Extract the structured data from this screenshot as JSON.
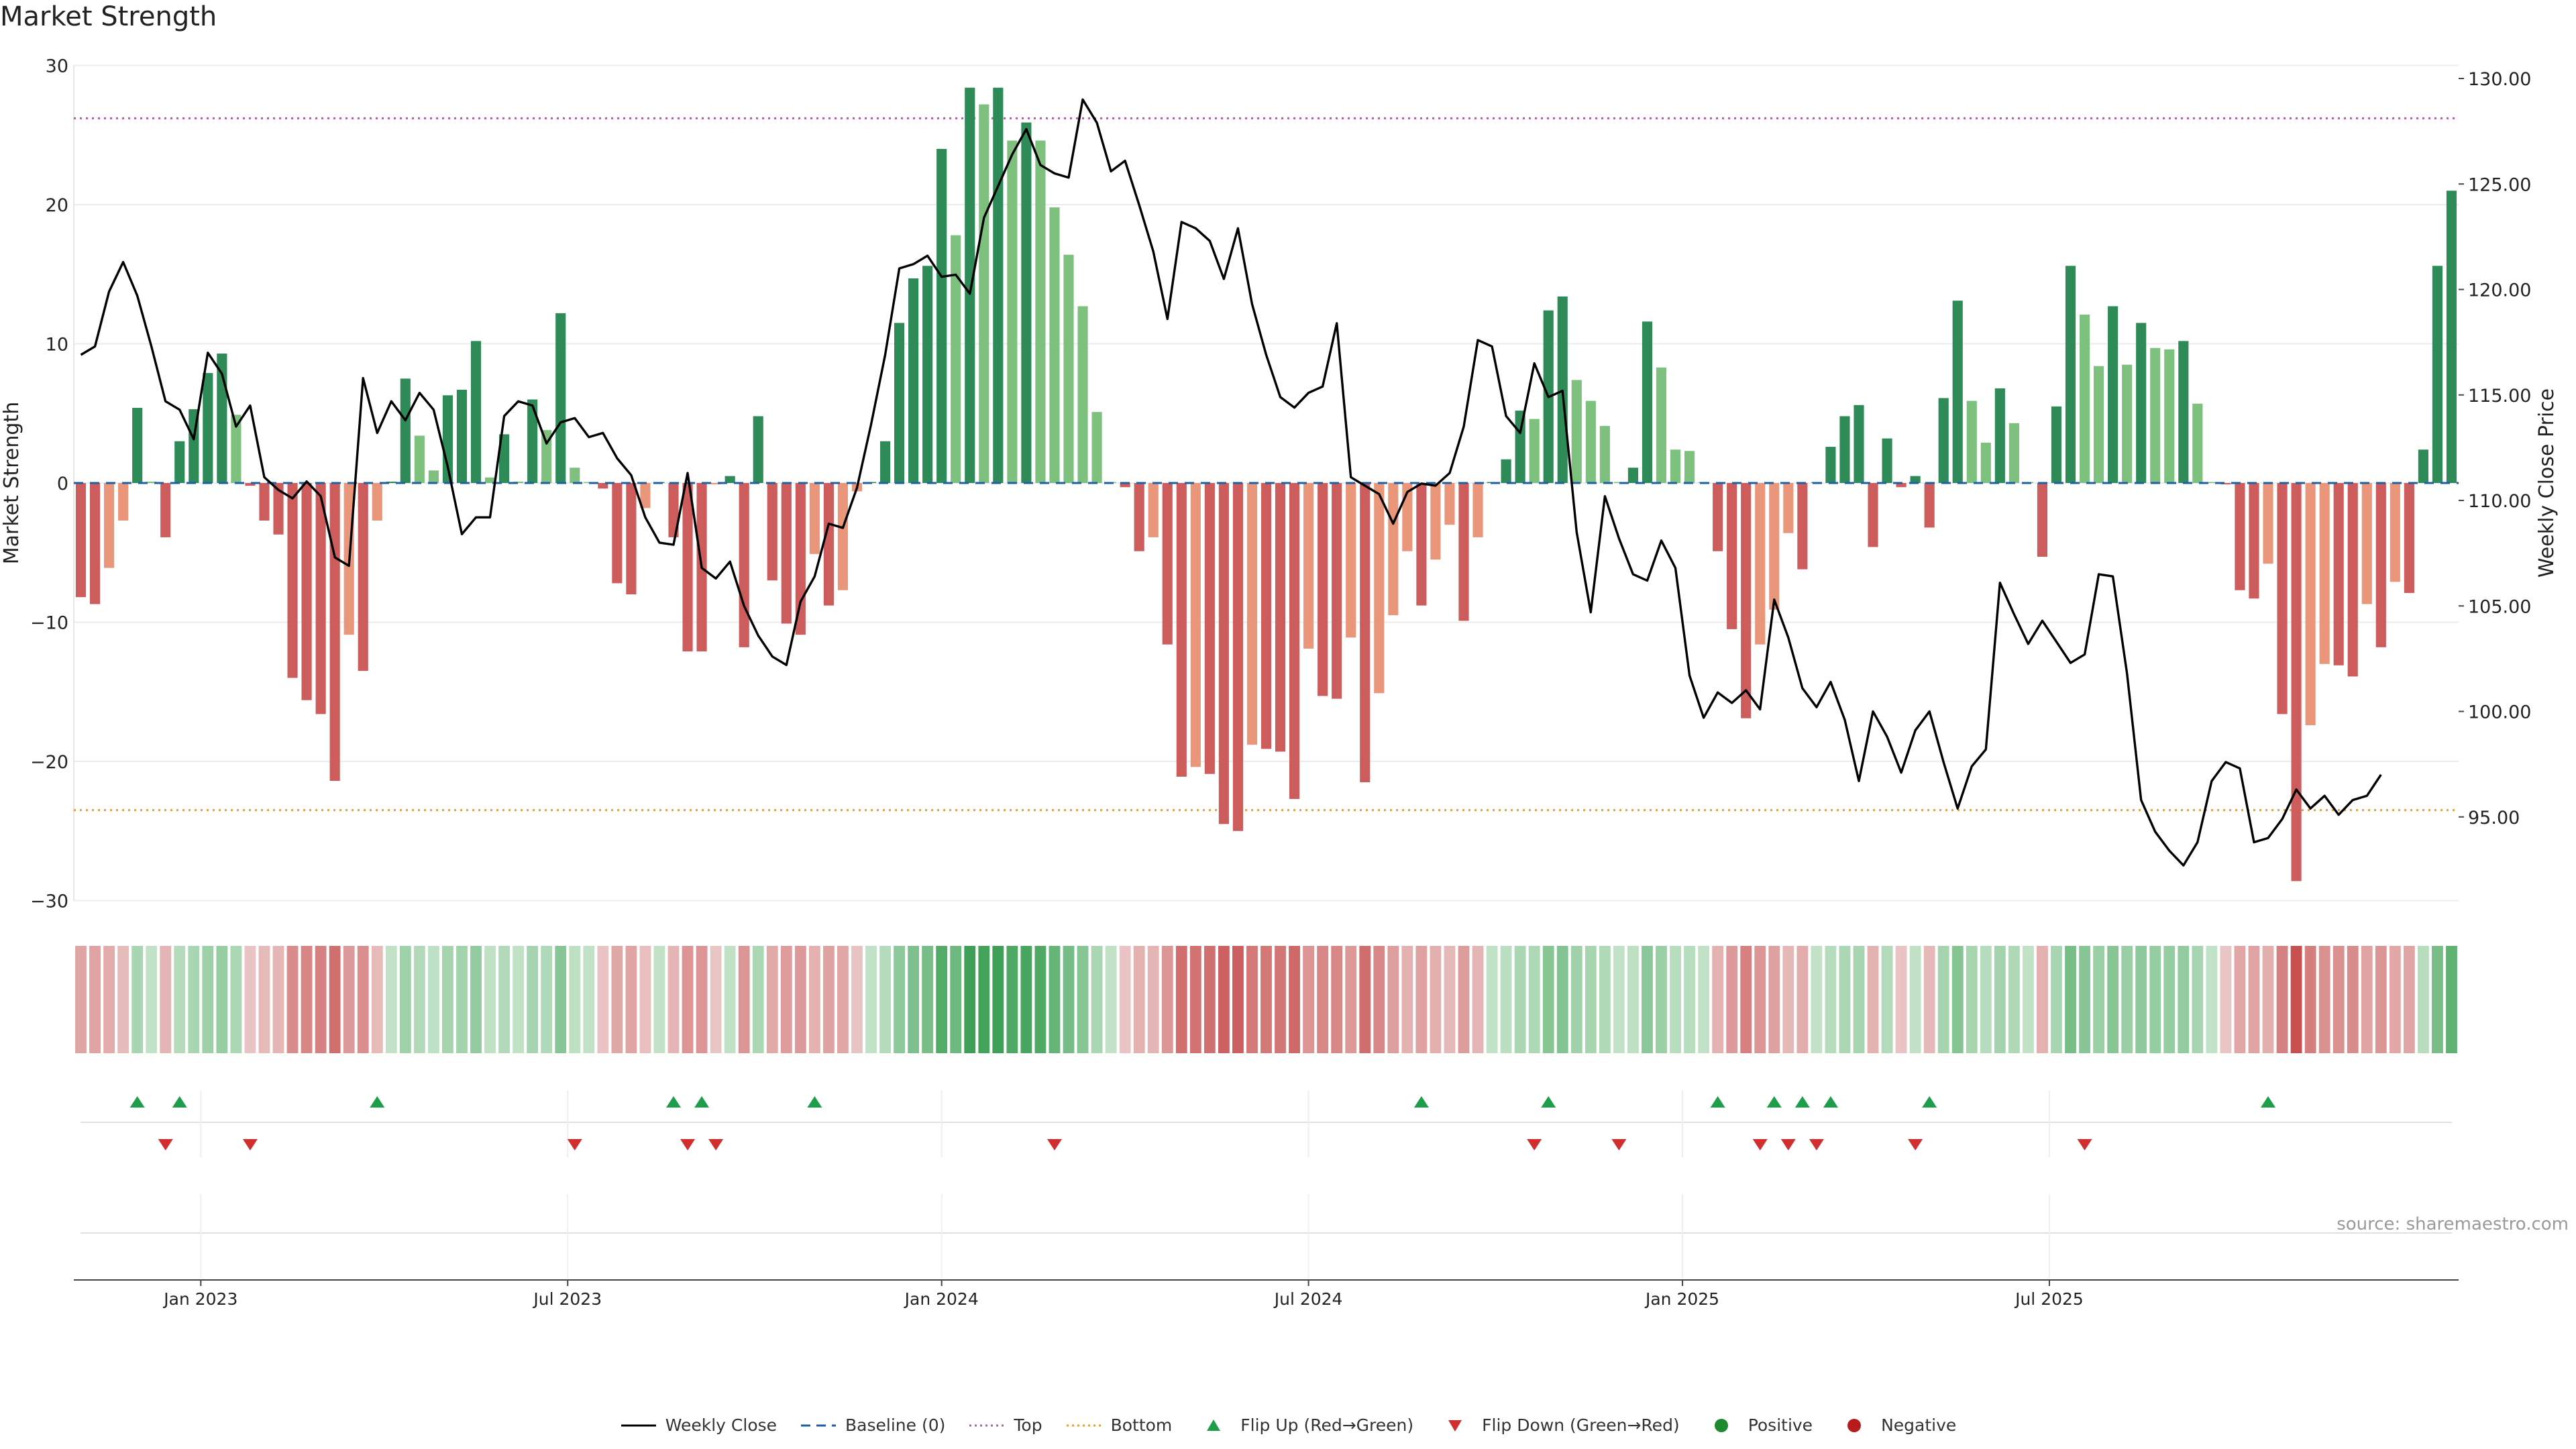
{
  "title": "Market Strength",
  "source": "source: sharemaestro.com",
  "chart_data": {
    "type": "bar",
    "title": "Market Strength",
    "ylabel": "Market Strength",
    "y2label": "Weekly Close Price",
    "ylim": [
      -30,
      30
    ],
    "y2lim": [
      90.0,
      131.0
    ],
    "yticks": [
      "30",
      "20",
      "10",
      "0",
      "−10",
      "−20",
      "−30"
    ],
    "y2ticks": [
      "130.00",
      "125.00",
      "120.00",
      "115.00",
      "110.00",
      "105.00",
      "100.00",
      "95.00"
    ],
    "xticks": [
      {
        "label": "Jan 2023",
        "week": 8.5
      },
      {
        "label": "Jul 2023",
        "week": 34.5
      },
      {
        "label": "Jan 2024",
        "week": 61
      },
      {
        "label": "Jul 2024",
        "week": 87
      },
      {
        "label": "Jan 2025",
        "week": 113.5
      },
      {
        "label": "Jul 2025",
        "week": 139.5
      }
    ],
    "top_line": 26.2,
    "bottom_line": -23.5,
    "strength": [
      -8.2,
      -8.7,
      -6.1,
      -2.7,
      5.4,
      0.1,
      -3.9,
      3.0,
      5.3,
      7.9,
      9.3,
      4.9,
      -0.2,
      -2.7,
      -3.7,
      -14.0,
      -15.6,
      -16.6,
      -21.4,
      -10.9,
      -13.5,
      -2.7,
      0.1,
      7.5,
      3.4,
      0.9,
      6.3,
      6.7,
      10.2,
      0.4,
      3.5,
      0.1,
      6.0,
      3.8,
      12.2,
      1.1,
      0,
      -0.4,
      -7.2,
      -8.0,
      -1.8,
      0,
      -3.9,
      -12.1,
      -12.1,
      -0.1,
      0.5,
      -11.8,
      4.8,
      -7.0,
      -10.1,
      -10.9,
      -5.1,
      -8.8,
      -7.7,
      -0.6,
      0,
      3.0,
      11.5,
      14.7,
      15.6,
      24.0,
      17.8,
      28.4,
      27.2,
      28.4,
      24.6,
      25.9,
      24.6,
      19.8,
      16.4,
      12.7,
      5.1,
      0,
      -0.3,
      -4.9,
      -3.9,
      -11.6,
      -21.1,
      -20.4,
      -20.9,
      -24.5,
      -25.0,
      -18.8,
      -19.1,
      -19.3,
      -22.7,
      -11.9,
      -15.3,
      -15.5,
      -11.1,
      -21.5,
      -15.1,
      -9.5,
      -4.9,
      -8.8,
      -5.5,
      -3.0,
      -9.9,
      -3.9,
      0,
      1.7,
      5.2,
      4.6,
      12.4,
      13.4,
      7.4,
      5.9,
      4.1,
      0,
      1.1,
      11.6,
      8.3,
      2.4,
      2.3,
      0,
      -4.9,
      -10.5,
      -16.9,
      -11.6,
      -9.1,
      -3.6,
      -6.2,
      0,
      2.6,
      4.8,
      5.6,
      -4.6,
      3.2,
      -0.3,
      0.5,
      -3.2,
      6.1,
      13.1,
      5.9,
      2.9,
      6.8,
      4.3,
      0,
      -5.3,
      5.5,
      15.6,
      12.1,
      8.4,
      12.7,
      8.5,
      11.5,
      9.7,
      9.6,
      10.2,
      5.7,
      0,
      -0.1,
      -7.7,
      -8.3,
      -5.8,
      -16.6,
      -28.6,
      -17.4,
      -13.0,
      -13.1,
      -13.9,
      -8.7,
      -11.8,
      -7.1,
      -7.9,
      2.4,
      15.6,
      21.0
    ],
    "close": [
      116.9,
      117.3,
      119.9,
      121.3,
      119.7,
      117.3,
      114.7,
      114.3,
      112.9,
      117.0,
      116.0,
      113.5,
      114.5,
      111.1,
      110.5,
      110.1,
      110.9,
      110.2,
      107.3,
      106.9,
      115.8,
      113.2,
      114.7,
      113.8,
      115.1,
      114.3,
      111.6,
      108.4,
      109.2,
      109.2,
      114.0,
      114.7,
      114.5,
      112.7,
      113.7,
      113.9,
      113.0,
      113.2,
      112.0,
      111.2,
      109.2,
      108.0,
      107.9,
      111.3,
      106.8,
      106.3,
      107.1,
      105.0,
      103.6,
      102.6,
      102.2,
      105.2,
      106.4,
      108.9,
      108.7,
      110.6,
      113.6,
      116.9,
      121.0,
      121.2,
      121.6,
      120.6,
      120.7,
      119.8,
      123.4,
      124.9,
      126.4,
      127.6,
      125.9,
      125.5,
      125.3,
      129.0,
      127.9,
      125.6,
      126.1,
      124.0,
      121.8,
      118.6,
      123.2,
      122.9,
      122.3,
      120.5,
      122.9,
      119.3,
      116.9,
      114.9,
      114.4,
      115.1,
      115.4,
      118.4,
      111.1,
      110.7,
      110.3,
      108.9,
      110.4,
      110.8,
      110.7,
      111.3,
      113.5,
      117.6,
      117.3,
      114.0,
      113.2,
      116.5,
      114.9,
      115.2,
      108.5,
      104.7,
      110.2,
      108.2,
      106.5,
      106.2,
      108.1,
      106.8,
      101.7,
      99.7,
      100.9,
      100.4,
      101.0,
      100.1,
      105.3,
      103.5,
      101.1,
      100.2,
      101.4,
      99.6,
      96.7,
      100.0,
      98.8,
      97.1,
      99.1,
      100.0,
      97.6,
      95.4,
      97.4,
      98.2,
      106.1,
      104.6,
      103.2,
      104.3,
      103.3,
      102.3,
      102.7,
      106.5,
      106.4,
      101.8,
      95.8,
      94.3,
      93.4,
      92.7,
      93.8,
      96.7,
      97.6,
      97.3,
      93.8,
      94.0,
      94.9,
      96.3,
      95.4,
      96.0,
      95.1,
      95.8,
      96.0,
      97.0
    ],
    "flip_up_weeks": [
      4,
      7,
      21,
      42,
      44,
      52,
      95,
      104,
      116,
      120,
      122,
      124,
      131,
      155
    ],
    "flip_down_weeks": [
      6,
      12,
      35,
      43,
      45,
      69,
      103,
      109,
      119,
      121,
      123,
      130,
      142
    ],
    "legend": [
      {
        "label": "Weekly Close",
        "symbol": "solid-line",
        "color": "#000000"
      },
      {
        "label": "Baseline (0)",
        "symbol": "dash-line",
        "color": "#1f5fa8"
      },
      {
        "label": "Top",
        "symbol": "dot-line",
        "color": "#b35ab3"
      },
      {
        "label": "Bottom",
        "symbol": "dot-line",
        "color": "#e0a040"
      },
      {
        "label": "Flip Up (Red→Green)",
        "symbol": "up-triangle",
        "color": "#1e9e4a"
      },
      {
        "label": "Flip Down (Green→Red)",
        "symbol": "down-triangle",
        "color": "#d22e2e"
      },
      {
        "label": "Positive",
        "symbol": "circle",
        "color": "#1e8a2f"
      },
      {
        "label": "Negative",
        "symbol": "circle",
        "color": "#b71c1c"
      }
    ],
    "colors": {
      "strong_positive": "#2e8b57",
      "weak_positive": "#7ec07e",
      "strong_negative": "#cd5c5c",
      "weak_negative": "#e9967a",
      "close_line": "#000000",
      "baseline": "#1f5fa8",
      "top": "#b35ab3",
      "bottom": "#e0a040"
    }
  }
}
